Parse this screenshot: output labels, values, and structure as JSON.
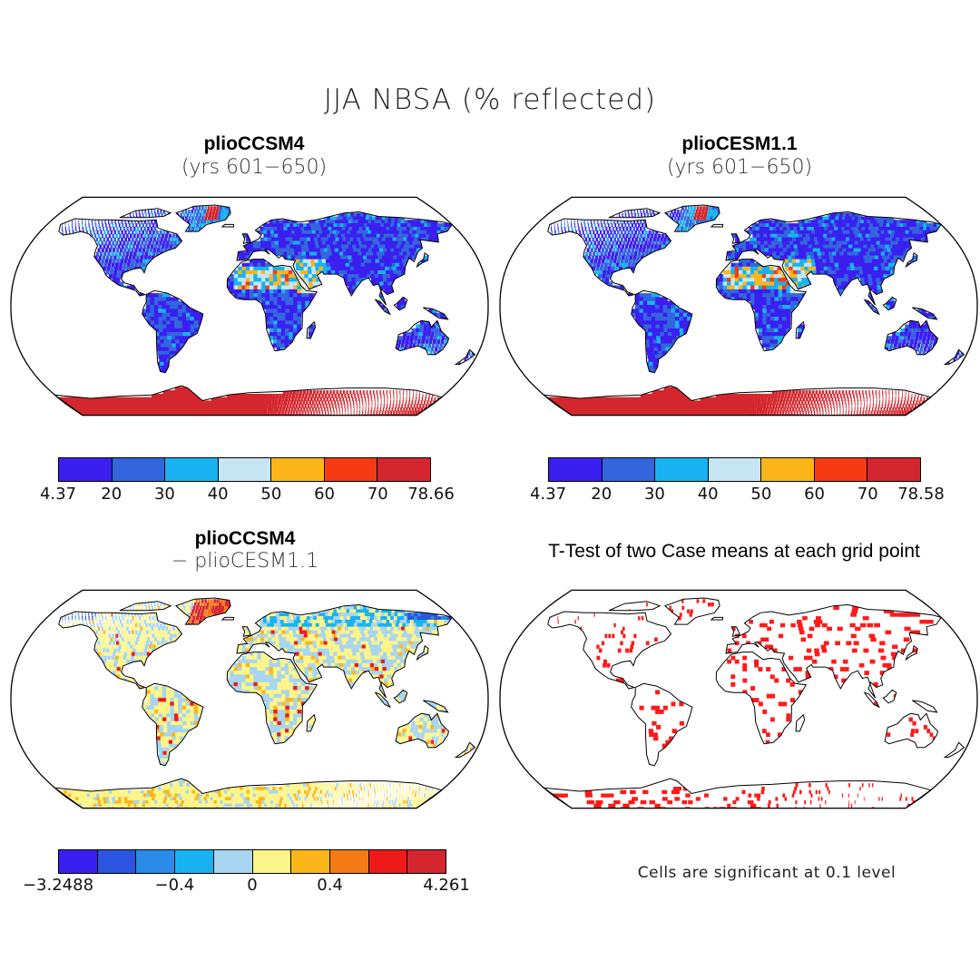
{
  "title": "JJA NBSA (% reflected)",
  "panels": [
    {
      "title": "plioCCSM4",
      "subtitle": "(yrs 601−650)",
      "kind": "field",
      "colors": [
        "#3a1ff0",
        "#3366dd",
        "#19b2f0",
        "#c6e6f4",
        "#fcb619",
        "#f53a14",
        "#d4262e"
      ],
      "colorbar_labels": [
        "4.37",
        "20",
        "30",
        "40",
        "50",
        "60",
        "70",
        "78.66"
      ]
    },
    {
      "title": "plioCESM1.1",
      "subtitle": "(yrs 601−650)",
      "kind": "field",
      "colors": [
        "#3a1ff0",
        "#3366dd",
        "#19b2f0",
        "#c6e6f4",
        "#fcb619",
        "#f53a14",
        "#d4262e"
      ],
      "colorbar_labels": [
        "4.37",
        "20",
        "30",
        "40",
        "50",
        "60",
        "70",
        "78.58"
      ]
    },
    {
      "title": "plioCCSM4",
      "subtitle": "− plioCESM1.1",
      "kind": "difference",
      "colors": [
        "#3a1ff0",
        "#2b55e0",
        "#2a8be8",
        "#19b2f0",
        "#a8d5f0",
        "#fdf58a",
        "#fcb619",
        "#f57a14",
        "#ee1a1a",
        "#d4262e"
      ],
      "colorbar_labels": [
        "−3.2488",
        "−0.4",
        "0",
        "0.4",
        "4.261"
      ]
    },
    {
      "title": "T-Test of two Case means at each grid point",
      "kind": "significance",
      "colors": [
        "#ff1a1a"
      ],
      "note": "Cells are significant at 0.1 level"
    }
  ]
}
